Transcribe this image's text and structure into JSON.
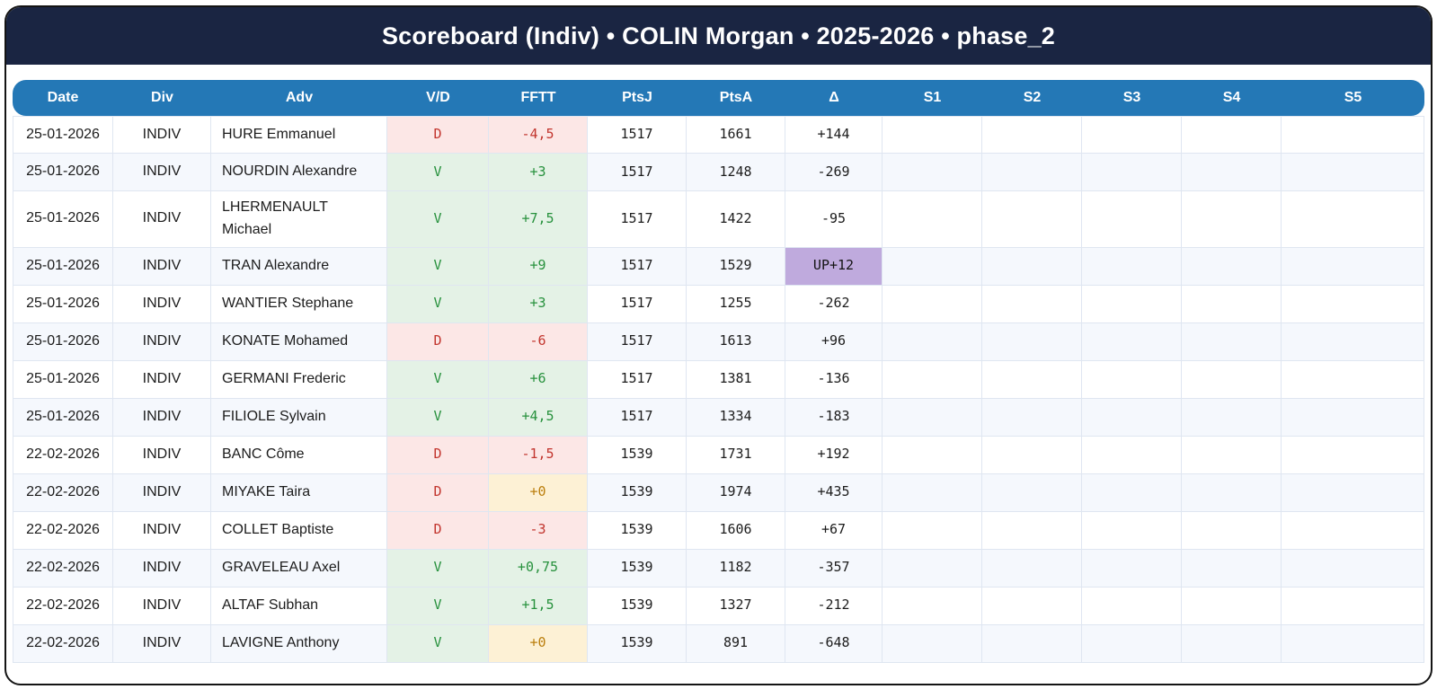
{
  "title": "Scoreboard (Indiv) • COLIN Morgan • 2025-2026 • phase_2",
  "colors": {
    "titlebar_bg": "#1a2542",
    "header_bg": "#2478b6",
    "win_bg": "#e4f2e6",
    "win_fg": "#27913d",
    "loss_bg": "#fce7e6",
    "loss_fg": "#c2352e",
    "neutral_bg": "#fdf1d5",
    "neutral_fg": "#bb7e0c",
    "promo_bg": "#bfaadd",
    "row_alt_bg": "#f5f8fd",
    "cell_border": "#dfe6f1"
  },
  "table": {
    "columns": [
      "Date",
      "Div",
      "Adv",
      "V/D",
      "FFTT",
      "PtsJ",
      "PtsA",
      "Δ",
      "S1",
      "S2",
      "S3",
      "S4",
      "S5"
    ],
    "rows": [
      {
        "date": "25-01-2026",
        "div": "INDIV",
        "adv": "HURE Emmanuel",
        "vd": "D",
        "vd_type": "loss",
        "fftt": "-4,5",
        "fftt_type": "loss",
        "ptsj": "1517",
        "ptsa": "1661",
        "delta": "+144",
        "delta_type": "normal",
        "s1": "",
        "s2": "",
        "s3": "",
        "s4": "",
        "s5": ""
      },
      {
        "date": "25-01-2026",
        "div": "INDIV",
        "adv": "NOURDIN Alexandre",
        "vd": "V",
        "vd_type": "win",
        "fftt": "+3",
        "fftt_type": "win",
        "ptsj": "1517",
        "ptsa": "1248",
        "delta": "-269",
        "delta_type": "normal",
        "s1": "",
        "s2": "",
        "s3": "",
        "s4": "",
        "s5": ""
      },
      {
        "date": "25-01-2026",
        "div": "INDIV",
        "adv": "LHERMENAULT Michael",
        "vd": "V",
        "vd_type": "win",
        "fftt": "+7,5",
        "fftt_type": "win",
        "ptsj": "1517",
        "ptsa": "1422",
        "delta": "-95",
        "delta_type": "normal",
        "s1": "",
        "s2": "",
        "s3": "",
        "s4": "",
        "s5": ""
      },
      {
        "date": "25-01-2026",
        "div": "INDIV",
        "adv": "TRAN Alexandre",
        "vd": "V",
        "vd_type": "win",
        "fftt": "+9",
        "fftt_type": "win",
        "ptsj": "1517",
        "ptsa": "1529",
        "delta": "UP+12",
        "delta_type": "promo",
        "s1": "",
        "s2": "",
        "s3": "",
        "s4": "",
        "s5": ""
      },
      {
        "date": "25-01-2026",
        "div": "INDIV",
        "adv": "WANTIER Stephane",
        "vd": "V",
        "vd_type": "win",
        "fftt": "+3",
        "fftt_type": "win",
        "ptsj": "1517",
        "ptsa": "1255",
        "delta": "-262",
        "delta_type": "normal",
        "s1": "",
        "s2": "",
        "s3": "",
        "s4": "",
        "s5": ""
      },
      {
        "date": "25-01-2026",
        "div": "INDIV",
        "adv": "KONATE Mohamed",
        "vd": "D",
        "vd_type": "loss",
        "fftt": "-6",
        "fftt_type": "loss",
        "ptsj": "1517",
        "ptsa": "1613",
        "delta": "+96",
        "delta_type": "normal",
        "s1": "",
        "s2": "",
        "s3": "",
        "s4": "",
        "s5": ""
      },
      {
        "date": "25-01-2026",
        "div": "INDIV",
        "adv": "GERMANI Frederic",
        "vd": "V",
        "vd_type": "win",
        "fftt": "+6",
        "fftt_type": "win",
        "ptsj": "1517",
        "ptsa": "1381",
        "delta": "-136",
        "delta_type": "normal",
        "s1": "",
        "s2": "",
        "s3": "",
        "s4": "",
        "s5": ""
      },
      {
        "date": "25-01-2026",
        "div": "INDIV",
        "adv": "FILIOLE Sylvain",
        "vd": "V",
        "vd_type": "win",
        "fftt": "+4,5",
        "fftt_type": "win",
        "ptsj": "1517",
        "ptsa": "1334",
        "delta": "-183",
        "delta_type": "normal",
        "s1": "",
        "s2": "",
        "s3": "",
        "s4": "",
        "s5": ""
      },
      {
        "date": "22-02-2026",
        "div": "INDIV",
        "adv": "BANC Côme",
        "vd": "D",
        "vd_type": "loss",
        "fftt": "-1,5",
        "fftt_type": "loss",
        "ptsj": "1539",
        "ptsa": "1731",
        "delta": "+192",
        "delta_type": "normal",
        "s1": "",
        "s2": "",
        "s3": "",
        "s4": "",
        "s5": ""
      },
      {
        "date": "22-02-2026",
        "div": "INDIV",
        "adv": "MIYAKE Taira",
        "vd": "D",
        "vd_type": "loss",
        "fftt": "+0",
        "fftt_type": "neutral",
        "ptsj": "1539",
        "ptsa": "1974",
        "delta": "+435",
        "delta_type": "normal",
        "s1": "",
        "s2": "",
        "s3": "",
        "s4": "",
        "s5": ""
      },
      {
        "date": "22-02-2026",
        "div": "INDIV",
        "adv": "COLLET Baptiste",
        "vd": "D",
        "vd_type": "loss",
        "fftt": "-3",
        "fftt_type": "loss",
        "ptsj": "1539",
        "ptsa": "1606",
        "delta": "+67",
        "delta_type": "normal",
        "s1": "",
        "s2": "",
        "s3": "",
        "s4": "",
        "s5": ""
      },
      {
        "date": "22-02-2026",
        "div": "INDIV",
        "adv": "GRAVELEAU Axel",
        "vd": "V",
        "vd_type": "win",
        "fftt": "+0,75",
        "fftt_type": "win",
        "ptsj": "1539",
        "ptsa": "1182",
        "delta": "-357",
        "delta_type": "normal",
        "s1": "",
        "s2": "",
        "s3": "",
        "s4": "",
        "s5": ""
      },
      {
        "date": "22-02-2026",
        "div": "INDIV",
        "adv": "ALTAF Subhan",
        "vd": "V",
        "vd_type": "win",
        "fftt": "+1,5",
        "fftt_type": "win",
        "ptsj": "1539",
        "ptsa": "1327",
        "delta": "-212",
        "delta_type": "normal",
        "s1": "",
        "s2": "",
        "s3": "",
        "s4": "",
        "s5": ""
      },
      {
        "date": "22-02-2026",
        "div": "INDIV",
        "adv": "LAVIGNE Anthony",
        "vd": "V",
        "vd_type": "win",
        "fftt": "+0",
        "fftt_type": "neutral",
        "ptsj": "1539",
        "ptsa": "891",
        "delta": "-648",
        "delta_type": "normal",
        "s1": "",
        "s2": "",
        "s3": "",
        "s4": "",
        "s5": ""
      }
    ]
  }
}
